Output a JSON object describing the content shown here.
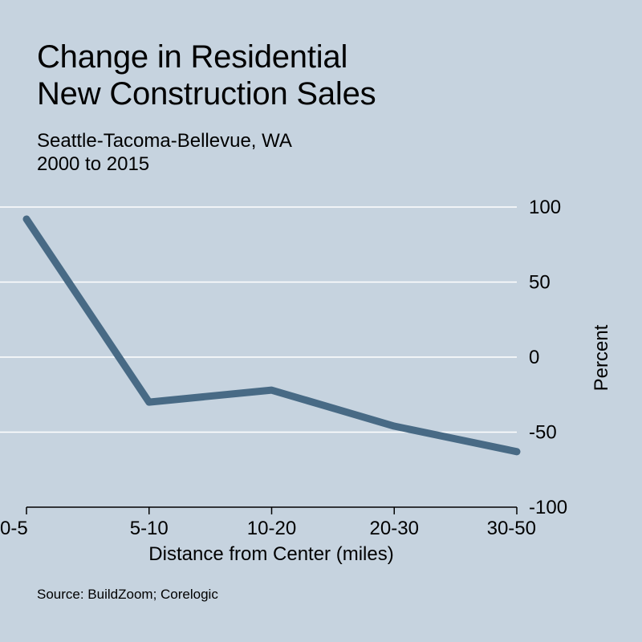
{
  "title_lines": [
    "Change in Residential",
    "New Construction Sales"
  ],
  "subtitle_lines": [
    "Seattle-Tacoma-Bellevue, WA",
    "2000 to 2015"
  ],
  "source": "Source: BuildZoom; Corelogic",
  "colors": {
    "background": "#c6d3df",
    "line": "#486a85",
    "grid": "#ffffff",
    "text": "#000000"
  },
  "chart_data": {
    "type": "line",
    "categories": [
      "0-5",
      "5-10",
      "10-20",
      "20-30",
      "30-50"
    ],
    "series": [
      {
        "values": [
          92,
          -30,
          -22,
          -46,
          -63
        ]
      }
    ],
    "xlabel": "Distance from Center (miles)",
    "ylabel": "Percent",
    "ylim": [
      -100,
      100
    ],
    "yticks": [
      100,
      50,
      0,
      -50,
      -100
    ],
    "y_axis_side": "right",
    "grid": true
  }
}
